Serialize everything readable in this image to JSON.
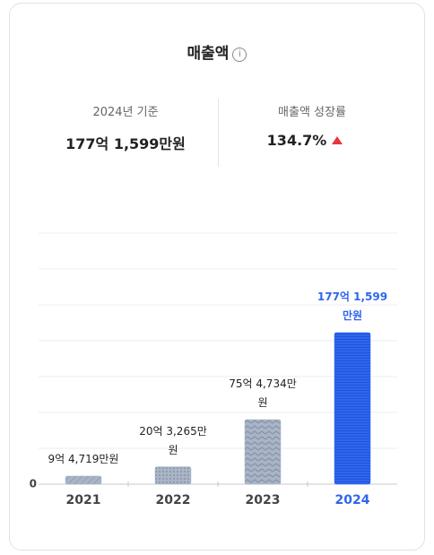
{
  "header": {
    "title": "매출액"
  },
  "summary": {
    "base": {
      "label": "2024년 기준",
      "value": "177억 1,599만원"
    },
    "growth": {
      "label": "매출액 성장률",
      "value": "134.7%"
    }
  },
  "chart_data": {
    "type": "bar",
    "categories": [
      "2021",
      "2022",
      "2023",
      "2024"
    ],
    "values": [
      94719,
      203265,
      754734,
      1771599
    ],
    "value_labels": [
      "9억 4,719만원",
      "20억 3,265만원",
      "75억 4,734만원",
      "177억 1,599만원"
    ],
    "colors": [
      "#a9b4c6",
      "#a9b4c6",
      "#a9b4c6",
      "#2f66ee"
    ],
    "ylim": [
      0,
      2935000
    ],
    "yticks": [
      0
    ],
    "grid": true
  }
}
